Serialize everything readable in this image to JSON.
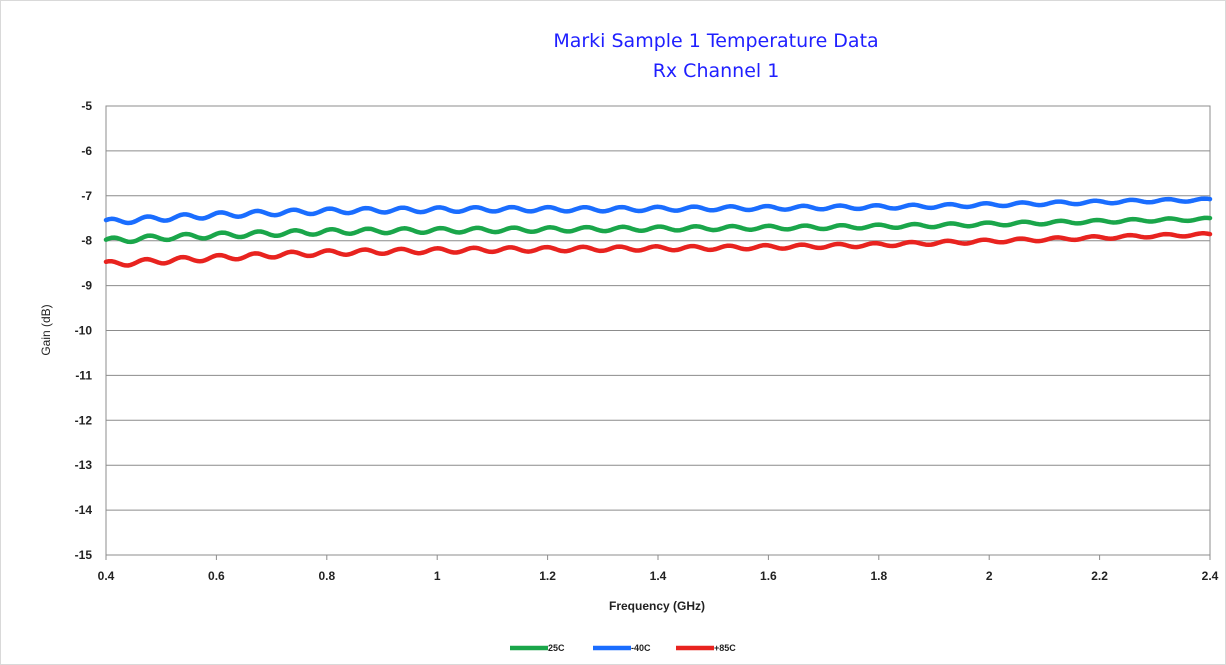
{
  "chart_data": {
    "type": "line",
    "title": "Marki Sample 1 Temperature Data",
    "subtitle": "Rx Channel 1",
    "xlabel": "Frequency (GHz)",
    "ylabel": "Gain (dB)",
    "xlim": [
      0.4,
      2.4
    ],
    "ylim": [
      -15,
      -5
    ],
    "xticks": [
      "0.4",
      "0.6",
      "0.8",
      "1",
      "1.2",
      "1.4",
      "1.6",
      "1.8",
      "2",
      "2.2",
      "2.4"
    ],
    "yticks": [
      "-5",
      "-6",
      "-7",
      "-8",
      "-9",
      "-10",
      "-11",
      "-12",
      "-13",
      "-14",
      "-15"
    ],
    "grid": "horizontal",
    "legend_position": "bottom",
    "x": [
      0.4,
      0.5,
      0.6,
      0.7,
      0.8,
      0.9,
      1.0,
      1.1,
      1.2,
      1.3,
      1.4,
      1.5,
      1.6,
      1.7,
      1.8,
      1.9,
      2.0,
      2.1,
      2.2,
      2.3,
      2.4
    ],
    "series": [
      {
        "name": "25C",
        "color": "#1aa64a",
        "values": [
          -8.0,
          -7.93,
          -7.88,
          -7.84,
          -7.8,
          -7.78,
          -7.77,
          -7.76,
          -7.75,
          -7.74,
          -7.73,
          -7.72,
          -7.71,
          -7.7,
          -7.68,
          -7.66,
          -7.63,
          -7.6,
          -7.57,
          -7.54,
          -7.52
        ]
      },
      {
        "name": "-40C",
        "color": "#1a6dff",
        "values": [
          -7.58,
          -7.5,
          -7.43,
          -7.38,
          -7.34,
          -7.32,
          -7.31,
          -7.3,
          -7.3,
          -7.3,
          -7.29,
          -7.28,
          -7.27,
          -7.26,
          -7.25,
          -7.23,
          -7.2,
          -7.17,
          -7.14,
          -7.11,
          -7.09
        ]
      },
      {
        "name": "+85C",
        "color": "#e8231f",
        "values": [
          -8.52,
          -8.45,
          -8.38,
          -8.32,
          -8.27,
          -8.24,
          -8.22,
          -8.2,
          -8.19,
          -8.18,
          -8.17,
          -8.16,
          -8.14,
          -8.12,
          -8.09,
          -8.05,
          -8.01,
          -7.97,
          -7.93,
          -7.89,
          -7.86
        ]
      }
    ]
  }
}
